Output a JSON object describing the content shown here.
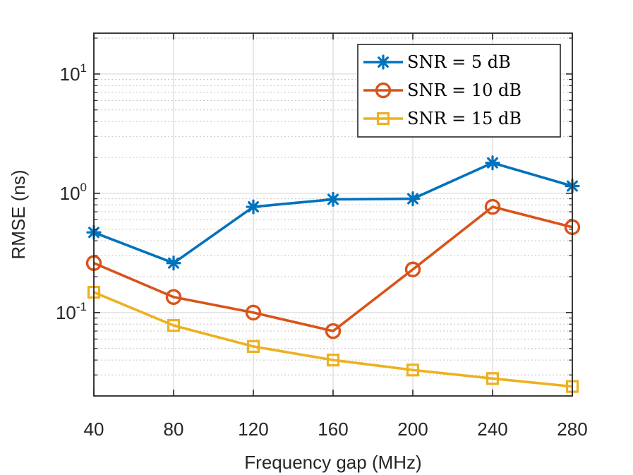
{
  "chart_data": {
    "type": "line",
    "y_scale": "log",
    "x": [
      40,
      80,
      120,
      160,
      200,
      240,
      280
    ],
    "series": [
      {
        "name": "SNR = 5 dB",
        "values": [
          0.47,
          0.26,
          0.77,
          0.89,
          0.9,
          1.8,
          1.15
        ],
        "color": "#0072BD",
        "marker": "asterisk"
      },
      {
        "name": "SNR = 10 dB",
        "values": [
          0.26,
          0.135,
          0.1,
          0.07,
          0.23,
          0.77,
          0.52
        ],
        "color": "#D95319",
        "marker": "circle"
      },
      {
        "name": "SNR = 15 dB",
        "values": [
          0.148,
          0.078,
          0.052,
          0.04,
          0.033,
          0.028,
          0.024
        ],
        "color": "#EDB120",
        "marker": "square"
      }
    ],
    "xlabel": "Frequency gap (MHz)",
    "ylabel": "RMSE (ns)",
    "xlim": [
      40,
      280
    ],
    "ylim": [
      0.02,
      22
    ],
    "xticks": [
      "40",
      "80",
      "120",
      "160",
      "200",
      "240",
      "280"
    ],
    "yticks": [
      {
        "value": 0.1,
        "base": "10",
        "exp": "-1"
      },
      {
        "value": 1,
        "base": "10",
        "exp": "0"
      },
      {
        "value": 10,
        "base": "10",
        "exp": "1"
      }
    ],
    "grid": true,
    "minor_grid": true,
    "legend_position": "top-right"
  }
}
